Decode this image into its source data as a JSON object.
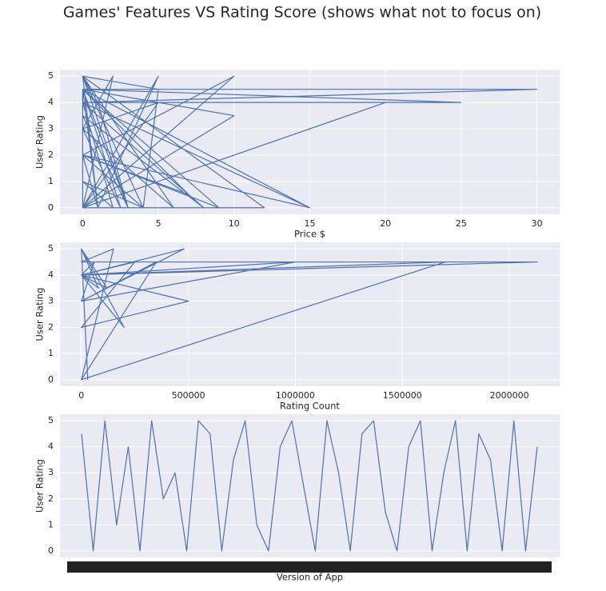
{
  "title": "Games' Features VS Rating Score (shows what not to focus on)",
  "chart_data": [
    {
      "type": "line",
      "xlabel": "Price $",
      "ylabel": "User Rating",
      "grid": true,
      "xlim": [
        -1.5,
        31.5
      ],
      "xticks": [
        0,
        5,
        10,
        15,
        20,
        25,
        30
      ],
      "ylim": [
        -0.25,
        5.25
      ],
      "yticks": [
        0,
        1,
        2,
        3,
        4,
        5
      ],
      "x": [
        0,
        0,
        2,
        0,
        5,
        0,
        10,
        0,
        15,
        0,
        1,
        0,
        3,
        0,
        8,
        0,
        30,
        0,
        25,
        0,
        20,
        0,
        12,
        0,
        4,
        0,
        7,
        0,
        2.5,
        0,
        6,
        0,
        1,
        3,
        0,
        10,
        0,
        5,
        1,
        0,
        9,
        0,
        15,
        0,
        2,
        0,
        4,
        5,
        0,
        1
      ],
      "series": [
        {
          "color": "#4c72b0",
          "values": [
            4.5,
            0,
            5,
            3,
            4,
            0,
            5,
            2,
            0,
            4.5,
            0,
            5,
            0,
            3.5,
            0,
            4,
            4.5,
            4.5,
            4,
            4,
            4,
            0,
            0,
            5,
            0,
            2,
            0.5,
            4.5,
            0,
            3,
            0,
            5,
            4,
            0,
            4.5,
            3.5,
            0,
            5,
            0,
            2,
            0,
            4.5,
            0,
            4,
            0,
            1,
            0,
            4.5,
            5,
            0
          ]
        }
      ]
    },
    {
      "type": "line",
      "xlabel": "Rating Count",
      "ylabel": "User Rating",
      "grid": true,
      "xlim": [
        -100000,
        2235000
      ],
      "xticks": [
        0,
        500000,
        1000000,
        1500000,
        2000000
      ],
      "ylim": [
        -0.25,
        5.25
      ],
      "yticks": [
        0,
        1,
        2,
        3,
        4,
        5
      ],
      "x": [
        0,
        150000,
        0,
        2130000,
        0,
        480000,
        0,
        1000000,
        0,
        500000,
        0,
        250000,
        0,
        80000,
        0,
        200000,
        0,
        1700000,
        0,
        350000,
        0,
        60000,
        0,
        120000,
        0,
        30000
      ],
      "series": [
        {
          "color": "#4c72b0",
          "values": [
            0,
            5,
            4.5,
            4.5,
            4,
            5,
            3,
            4.5,
            4,
            3,
            2,
            4.5,
            4,
            3.5,
            5,
            2,
            4,
            4.5,
            0,
            4.5,
            3,
            4.5,
            4,
            3.5,
            5,
            0
          ]
        }
      ]
    },
    {
      "type": "line",
      "xlabel": "Version of App",
      "ylabel": "User Rating",
      "grid": true,
      "ylim": [
        -0.25,
        5.25
      ],
      "yticks": [
        0,
        1,
        2,
        3,
        4,
        5
      ],
      "categories": [
        null,
        null,
        null,
        null,
        null,
        null,
        null,
        null,
        null,
        null,
        null,
        null,
        null,
        null,
        null,
        null,
        null,
        null,
        null,
        null,
        null,
        null,
        null,
        null,
        null,
        null,
        null,
        null,
        null,
        null,
        null,
        null,
        null,
        null,
        null,
        null,
        null,
        null,
        null,
        null
      ],
      "series": [
        {
          "color": "#4c72b0",
          "values": [
            4.5,
            0,
            5,
            1,
            4,
            0,
            5,
            2,
            3,
            0,
            5,
            4.5,
            0,
            3.5,
            5,
            1,
            0,
            4,
            5,
            2.5,
            0,
            5,
            3,
            0,
            4.5,
            5,
            1.5,
            0,
            4,
            5,
            0,
            3,
            5,
            0,
            4.5,
            3.5,
            0,
            5,
            0,
            4
          ]
        }
      ]
    }
  ]
}
